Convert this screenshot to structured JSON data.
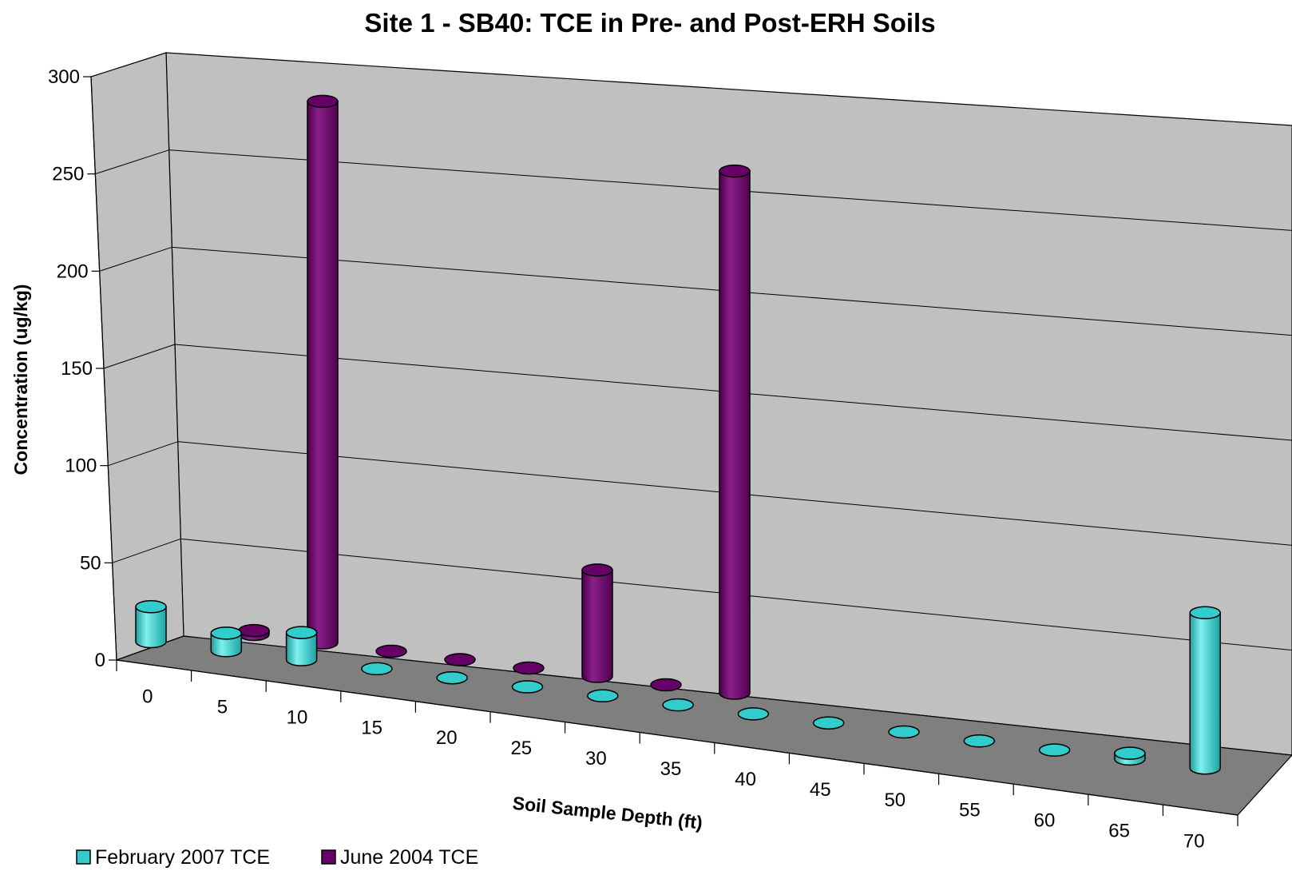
{
  "chart_data": {
    "type": "bar",
    "style": "3d-cylinder",
    "title": "Site 1 - SB40: TCE in Pre- and Post-ERH Soils",
    "xlabel": "Soil Sample Depth (ft)",
    "ylabel": "Concentration (ug/kg)",
    "ylim": [
      0,
      300
    ],
    "yticks": [
      0,
      50,
      100,
      150,
      200,
      250,
      300
    ],
    "categories": [
      "0",
      "5",
      "10",
      "15",
      "20",
      "25",
      "30",
      "35",
      "40",
      "45",
      "50",
      "55",
      "60",
      "65",
      "70"
    ],
    "grid": true,
    "legend_position": "bottom-left",
    "series": [
      {
        "name": "February 2007 TCE",
        "color": "#33cccc",
        "values": [
          18,
          9,
          14,
          0,
          0,
          0,
          0,
          0,
          0,
          0,
          0,
          0,
          0,
          3,
          80
        ]
      },
      {
        "name": "June 2004 TCE",
        "color": "#660066",
        "values": [
          null,
          2,
          280,
          0,
          0,
          0,
          55,
          0,
          270,
          null,
          null,
          null,
          null,
          null,
          null
        ]
      }
    ]
  }
}
